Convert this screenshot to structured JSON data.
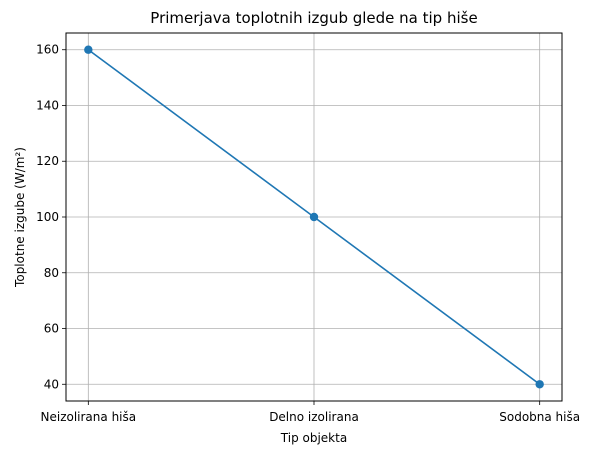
{
  "chart_data": {
    "type": "line",
    "title": "Primerjava toplotnih izgub glede na tip hiše",
    "xlabel": "Tip objekta",
    "ylabel": "Toplotne izgube (W/m²)",
    "categories": [
      "Neizolirana hiša",
      "Delno izolirana",
      "Sodobna hiša"
    ],
    "series": [
      {
        "values": [
          160,
          100,
          40
        ]
      }
    ],
    "ylim": [
      34,
      166
    ],
    "yticks": [
      40,
      60,
      80,
      100,
      120,
      140,
      160
    ],
    "ytick_labels": [
      "40",
      "60",
      "80",
      "100",
      "120",
      "140",
      "160"
    ],
    "grid": true,
    "marker": "circle",
    "colors": {
      "series": "#1f77b4",
      "grid": "#b0b0b0",
      "axes": "#000000"
    }
  }
}
